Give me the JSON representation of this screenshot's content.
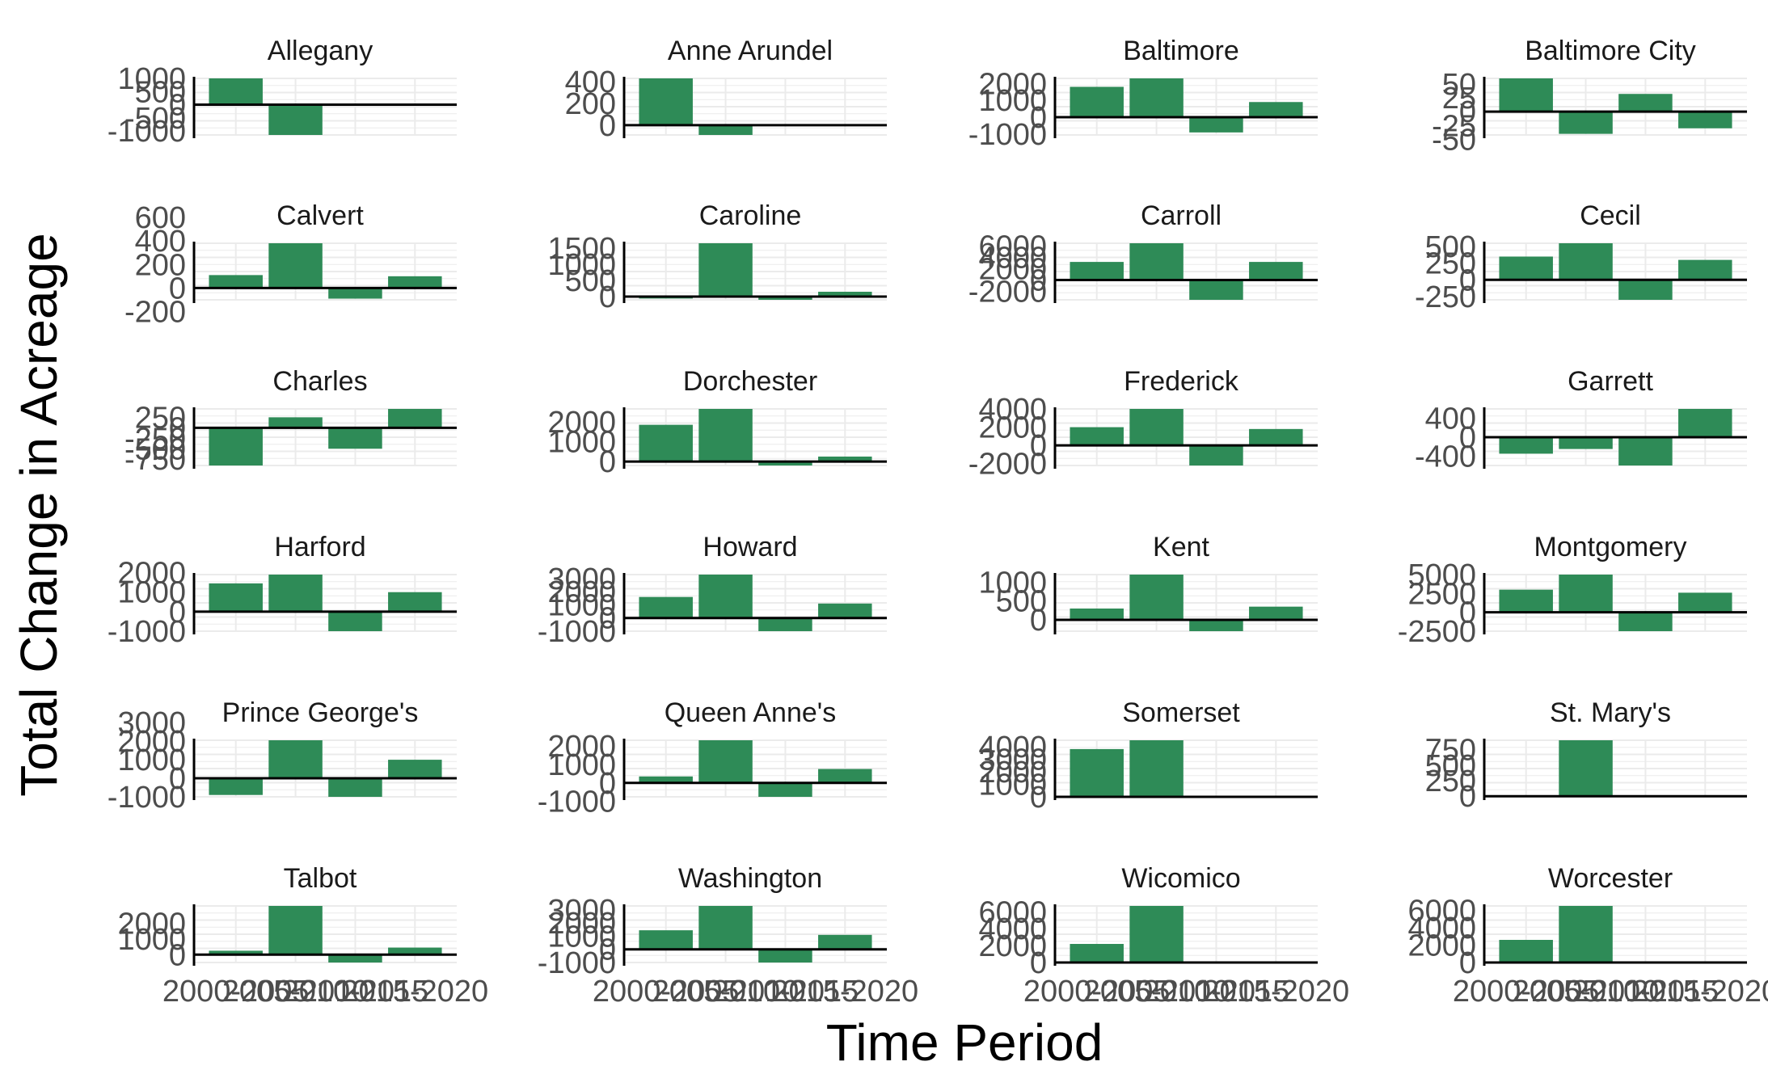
{
  "chart_data": {
    "type": "bar",
    "xlabel": "Time Period",
    "ylabel": "Total Change in Acreage",
    "categories": [
      "2000-2005",
      "2005-2010",
      "2010-2015",
      "2015-2020"
    ],
    "bar_color": "#2e8b57",
    "grid": true,
    "facets": [
      {
        "name": "Allegany",
        "values": [
          1000,
          -1150,
          0,
          0
        ],
        "yticks": [
          1000,
          500,
          0,
          -500,
          -1000
        ],
        "ylim": [
          -1150,
          1000
        ]
      },
      {
        "name": "Anne Arundel",
        "values": [
          430,
          -90,
          0,
          0
        ],
        "yticks": [
          400,
          200,
          0
        ],
        "ylim": [
          -90,
          430
        ]
      },
      {
        "name": "Baltimore",
        "values": [
          1800,
          2300,
          -900,
          900
        ],
        "yticks": [
          2000,
          1000,
          0,
          -1000
        ],
        "ylim": [
          -1050,
          2300
        ]
      },
      {
        "name": "Baltimore City",
        "values": [
          60,
          -40,
          32,
          -30
        ],
        "yticks": [
          50,
          25,
          0,
          -25,
          -50
        ],
        "ylim": [
          -42,
          60
        ]
      },
      {
        "name": "Calvert",
        "values": [
          110,
          380,
          -90,
          100
        ],
        "yticks": [
          600,
          400,
          200,
          0,
          -200
        ],
        "ylim": [
          -100,
          380
        ]
      },
      {
        "name": "Caroline",
        "values": [
          -60,
          1650,
          -100,
          150
        ],
        "yticks": [
          1500,
          1000,
          500,
          0
        ],
        "ylim": [
          -100,
          1650
        ]
      },
      {
        "name": "Carroll",
        "values": [
          3200,
          6500,
          -3500,
          3200
        ],
        "yticks": [
          6000,
          4000,
          2000,
          0,
          -2000
        ],
        "ylim": [
          -3500,
          6500
        ]
      },
      {
        "name": "Cecil",
        "values": [
          350,
          550,
          -300,
          300
        ],
        "yticks": [
          500,
          250,
          0,
          -250
        ],
        "ylim": [
          -300,
          550
        ]
      },
      {
        "name": "Charles",
        "values": [
          -900,
          250,
          -500,
          450
        ],
        "yticks": [
          250,
          0,
          -250,
          -500,
          -750
        ],
        "ylim": [
          -900,
          450
        ]
      },
      {
        "name": "Dorchester",
        "values": [
          1850,
          2650,
          -200,
          250
        ],
        "yticks": [
          2000,
          1000,
          0
        ],
        "ylim": [
          -200,
          2650
        ]
      },
      {
        "name": "Frederick",
        "values": [
          2000,
          4000,
          -2200,
          1800
        ],
        "yticks": [
          4000,
          2000,
          0,
          -2000
        ],
        "ylim": [
          -2200,
          4000
        ]
      },
      {
        "name": "Garrett",
        "values": [
          -350,
          -250,
          -600,
          600
        ],
        "yticks": [
          400,
          0,
          -400
        ],
        "ylim": [
          -600,
          600
        ]
      },
      {
        "name": "Harford",
        "values": [
          1450,
          1900,
          -1000,
          1000
        ],
        "yticks": [
          2000,
          1000,
          0,
          -1000
        ],
        "ylim": [
          -1000,
          1900
        ]
      },
      {
        "name": "Howard",
        "values": [
          1600,
          3300,
          -1000,
          1100
        ],
        "yticks": [
          3000,
          2000,
          1000,
          0,
          -1000
        ],
        "ylim": [
          -1000,
          3300
        ]
      },
      {
        "name": "Kent",
        "values": [
          300,
          1200,
          -300,
          350
        ],
        "yticks": [
          1000,
          500,
          0
        ],
        "ylim": [
          -300,
          1200
        ]
      },
      {
        "name": "Montgomery",
        "values": [
          3000,
          5000,
          -2500,
          2600
        ],
        "yticks": [
          5000,
          2500,
          0,
          -2500
        ],
        "ylim": [
          -2500,
          5000
        ]
      },
      {
        "name": "Prince George's",
        "values": [
          -900,
          2050,
          -1000,
          1000
        ],
        "yticks": [
          3000,
          2000,
          1000,
          0,
          -1000
        ],
        "ylim": [
          -1000,
          2050
        ]
      },
      {
        "name": "Queen Anne's",
        "values": [
          350,
          2300,
          -750,
          750
        ],
        "yticks": [
          2000,
          1000,
          0,
          -1000
        ],
        "ylim": [
          -750,
          2300
        ]
      },
      {
        "name": "Somerset",
        "values": [
          3800,
          4500,
          0,
          0
        ],
        "yticks": [
          4000,
          3000,
          2000,
          1000,
          0
        ],
        "ylim": [
          0,
          4500
        ]
      },
      {
        "name": "St. Mary's",
        "values": [
          0,
          900,
          -10,
          10
        ],
        "yticks": [
          750,
          500,
          250,
          0
        ],
        "ylim": [
          -10,
          900
        ]
      },
      {
        "name": "Talbot",
        "values": [
          250,
          3100,
          -500,
          450
        ],
        "yticks": [
          2000,
          1000,
          0
        ],
        "ylim": [
          -500,
          3100
        ]
      },
      {
        "name": "Washington",
        "values": [
          1450,
          3300,
          -1000,
          1100
        ],
        "yticks": [
          3000,
          2000,
          1000,
          0,
          -1000
        ],
        "ylim": [
          -1000,
          3300
        ]
      },
      {
        "name": "Wicomico",
        "values": [
          2200,
          6700,
          0,
          0
        ],
        "yticks": [
          6000,
          4000,
          2000,
          0
        ],
        "ylim": [
          0,
          6700
        ]
      },
      {
        "name": "Worcester",
        "values": [
          2600,
          6500,
          0,
          0
        ],
        "yticks": [
          6000,
          4000,
          2000,
          0
        ],
        "ylim": [
          0,
          6500
        ]
      }
    ]
  }
}
